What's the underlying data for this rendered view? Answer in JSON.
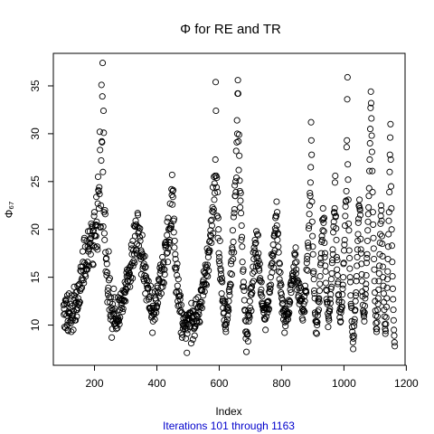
{
  "chart_data": {
    "type": "scatter",
    "title": "Φ  for  RE  and  TR",
    "xlabel": "Index",
    "ylabel": "Φ₆₇",
    "subtitle": "Iterations 101 through 1163",
    "xlim": [
      68,
      1196
    ],
    "ylim": [
      5.8,
      38.4
    ],
    "x_ticks": [
      200,
      400,
      600,
      800,
      1000,
      1200
    ],
    "y_ticks": [
      10,
      15,
      20,
      25,
      30,
      35
    ],
    "x_tick_labels": [
      "200",
      "400",
      "600",
      "800",
      "1000",
      "1200"
    ],
    "y_tick_labels": [
      "10",
      "15",
      "20",
      "25",
      "30",
      "35"
    ],
    "grid": false,
    "legend": "none",
    "marker": "open-circle",
    "x_start": 101,
    "n_points": 1063,
    "y": [
      12.1,
      11.1,
      11.7,
      9.8,
      12.2,
      11.2,
      12.6,
      9.7,
      12.5,
      12.7,
      12.3,
      11.0,
      10.0,
      13.1,
      9.5,
      10.4,
      9.4,
      11.4,
      11.2,
      13.3,
      11.3,
      10.3,
      11.2,
      12.2,
      11.8,
      10.2,
      10.5,
      9.3,
      13.1,
      11.0,
      12.0,
      10.5,
      10.7,
      11.1,
      9.5,
      11.5,
      12.6,
      14.0,
      13.1,
      10.5,
      12.8,
      12.3,
      10.5,
      13.4,
      11.6,
      12.4,
      10.9,
      13.5,
      11.6,
      14.1,
      11.8,
      12.8,
      12.2,
      14.2,
      12.2,
      12.4,
      14.3,
      12.4,
      13.6,
      15.7,
      16.1,
      13.8,
      15.6,
      14.7,
      13.9,
      14.9,
      16.1,
      17.7,
      16.6,
      14.7,
      15.7,
      14.4,
      18.9,
      19.1,
      16.5,
      15.3,
      18.2,
      15.1,
      16.3,
      15.8,
      15.9,
      18.8,
      16.2,
      15.8,
      16.6,
      18.2,
      19.8,
      17.7,
      17.9,
      16.2,
      18.0,
      18.5,
      19.8,
      19.0,
      18.6,
      17.4,
      19.1,
      20.6,
      19.4,
      18.3,
      20.2,
      20.4,
      16.4,
      19.8,
      16.3,
      19.9,
      18.3,
      21.4,
      21.8,
      19.4,
      19.3,
      20.4,
      18.1,
      20.5,
      19.3,
      23.4,
      20.8,
      20.4,
      18.2,
      17.9,
      22.7,
      25.5,
      24.1,
      24.0,
      22.2,
      24.4,
      23.7,
      30.2,
      28.3,
      20.2,
      20.3,
      22.5,
      27.2,
      35.1,
      29.2,
      29.1,
      33.9,
      37.4,
      26.0,
      20.3,
      32.4,
      30.1,
      21.8,
      19.6,
      18.9,
      22.0,
      21.6,
      17.6,
      15.6,
      16.9,
      17.0,
      15.2,
      16.4,
      15.5,
      12.4,
      13.6,
      13.2,
      13.9,
      17.7,
      14.7,
      12.9,
      11.6,
      14.9,
      12.4,
      11.0,
      10.6,
      12.9,
      10.9,
      11.8,
      8.7,
      11.5,
      9.6,
      12.2,
      10.4,
      11.6,
      11.1,
      13.8,
      11.2,
      10.1,
      12.9,
      11.7,
      10.2,
      9.9,
      10.2,
      10.7,
      9.6,
      10.5,
      11.0,
      10.3,
      9.7,
      10.5,
      12.9,
      10.7,
      10.4,
      10.5,
      12.6,
      10.1,
      11.6,
      10.8,
      12.6,
      12.8,
      13.3,
      12.1,
      11.8,
      12.6,
      12.3,
      12.7,
      11.4,
      13.6,
      11.7,
      12.5,
      12.5,
      13.5,
      12.6,
      13.4,
      14.5,
      13.4,
      12.5,
      13.8,
      14.3,
      13.7,
      15.5,
      15.1,
      15.8,
      14.6,
      14.0,
      14.6,
      15.1,
      15.7,
      15.4,
      15.2,
      16.0,
      15.4,
      14.0,
      16.1,
      14.6,
      15.0,
      16.3,
      18.4,
      18.0,
      17.4,
      16.5,
      14.9,
      18.8,
      16.2,
      17.8,
      16.7,
      20.4,
      17.4,
      16.5,
      20.3,
      19.3,
      20.3,
      20.9,
      17.8,
      20.5,
      17.9,
      17.5,
      18.5,
      20.3,
      21.7,
      21.5,
      19.6,
      20.2,
      18.3,
      19.8,
      17.2,
      19.2,
      20.1,
      18.8,
      17.2,
      16.9,
      17.8,
      15.3,
      17.6,
      17.1,
      19.4,
      17.4,
      15.9,
      16.2,
      17.1,
      14.8,
      16.4,
      14.6,
      15.2,
      17.2,
      16.0,
      13.3,
      16.1,
      15.1,
      14.9,
      12.6,
      14.2,
      14.7,
      13.9,
      13.9,
      13.8,
      13.9,
      14.6,
      12.7,
      12.9,
      11.8,
      11.8,
      11.7,
      13.0,
      14.1,
      11.8,
      11.5,
      11.4,
      10.8,
      11.0,
      13.4,
      9.2,
      12.0,
      10.4,
      11.2,
      11.8,
      11.8,
      11.1,
      11.4,
      10.6,
      13.5,
      12.8,
      12.8,
      12.6,
      11.3,
      11.8,
      11.9,
      12.0,
      14.1,
      13.9,
      12.3,
      13.4,
      13.4,
      14.8,
      14.7,
      13.0,
      14.6,
      16.0,
      15.4,
      16.3,
      15.7,
      13.9,
      13.3,
      14.5,
      16.1,
      15.8,
      17.1,
      14.0,
      14.5,
      16.4,
      16.6,
      14.4,
      15.8,
      15.8,
      15.3,
      18.4,
      18.6,
      18.1,
      18.3,
      18.7,
      18.3,
      17.5,
      19.4,
      20.8,
      17.6,
      16.6,
      21.2,
      18.0,
      20.0,
      18.7,
      20.1,
      18.9,
      18.6,
      22.7,
      20.1,
      20.1,
      20.5,
      20.3,
      24.2,
      23.6,
      25.7,
      22.6,
      24.0,
      23.4,
      24.1,
      20.9,
      19.7,
      21.1,
      18.1,
      18.8,
      16.0,
      17.4,
      16.9,
      15.8,
      13.4,
      16.0,
      13.5,
      15.2,
      16.4,
      14.1,
      12.5,
      12.0,
      14.8,
      13.0,
      13.5,
      12.1,
      13.0,
      11.4,
      12.7,
      13.1,
      11.5,
      9.2,
      12.1,
      11.3,
      11.3,
      8.7,
      9.0,
      10.2,
      9.6,
      10.0,
      10.7,
      9.9,
      11.1,
      10.3,
      9.8,
      9.6,
      10.8,
      10.3,
      8.6,
      11.0,
      9.7,
      10.5,
      7.1,
      9.1,
      9.5,
      11.1,
      10.5,
      10.1,
      10.6,
      11.0,
      10.7,
      11.3,
      10.5,
      11.2,
      9.8,
      11.3,
      10.2,
      8.1,
      12.3,
      10.8,
      10.4,
      10.8,
      11.5,
      8.5,
      11.4,
      10.9,
      10.4,
      9.6,
      9.7,
      8.9,
      9.9,
      9.8,
      12.2,
      11.1,
      12.7,
      10.4,
      11.0,
      10.4,
      10.2,
      10.9,
      11.8,
      12.9,
      11.9,
      11.4,
      11.1,
      10.4,
      12.2,
      10.3,
      12.0,
      12.4,
      11.9,
      13.7,
      13.6,
      13.7,
      12.4,
      11.8,
      13.6,
      14.2,
      14.5,
      13.1,
      14.7,
      15.6,
      14.3,
      14.2,
      13.5,
      15.4,
      15.5,
      16.3,
      14.3,
      16.1,
      15.2,
      14.2,
      16.0,
      18.0,
      16.3,
      15.1,
      17.6,
      17.1,
      15.7,
      17.8,
      17.6,
      18.7,
      17.8,
      18.8,
      19.4,
      19.9,
      20.9,
      19.3,
      18.6,
      21.0,
      20.4,
      21.9,
      22.3,
      24.4,
      19.6,
      21.8,
      22.1,
      25.5,
      23.1,
      24.8,
      23.8,
      25.6,
      27.3,
      35.4,
      32.4,
      25.6,
      24.4,
      25.4,
      21.4,
      21.4,
      23.9,
      19.1,
      21.2,
      20.0,
      17.5,
      16.7,
      17.1,
      16.4,
      18.8,
      14.8,
      15.9,
      15.7,
      15.3,
      14.6,
      13.3,
      14.9,
      14.5,
      12.5,
      12.7,
      11.8,
      12.5,
      11.2,
      11.3,
      10.5,
      12.3,
      10.0,
      12.5,
      10.0,
      9.6,
      9.3,
      10.1,
      10.3,
      11.7,
      11.9,
      10.6,
      11.0,
      11.6,
      11.8,
      11.5,
      12.5,
      13.7,
      13.5,
      13.1,
      14.0,
      14.3,
      15.4,
      14.2,
      16.4,
      16.7,
      17.6,
      15.3,
      18.1,
      17.9,
      19.9,
      16.9,
      18.7,
      21.3,
      17.6,
      21.7,
      22.1,
      24.6,
      23.5,
      23.5,
      25.0,
      23.9,
      28.2,
      25.4,
      29.1,
      31.4,
      30.0,
      34.2,
      35.6,
      34.2,
      29.2,
      26.2,
      29.9,
      27.7,
      25.1,
      24.0,
      22.3,
      23.0,
      23.8,
      21.7,
      18.9,
      20.4,
      19.2,
      18.2,
      16.6,
      14.0,
      15.6,
      15.8,
      14.5,
      14.0,
      13.6,
      12.6,
      11.6,
      11.5,
      10.5,
      9.3,
      8.6,
      10.4,
      7.2,
      9.3,
      9.0,
      9.1,
      9.0,
      11.0,
      8.3,
      11.5,
      10.4,
      11.1,
      11.0,
      10.8,
      12.5,
      11.8,
      13.8,
      13.2,
      13.9,
      11.5,
      13.2,
      14.0,
      13.4,
      14.4,
      15.4,
      16.1,
      17.6,
      14.6,
      16.9,
      18.1,
      15.6,
      17.8,
      18.9,
      18.5,
      17.5,
      18.6,
      16.1,
      19.8,
      17.0,
      16.5,
      19.5,
      17.1,
      16.2,
      19.4,
      17.5,
      16.7,
      15.9,
      15.7,
      14.7,
      16.4,
      14.9,
      14.6,
      13.4,
      13.2,
      13.7,
      14.5,
      12.3,
      13.0,
      12.0,
      12.2,
      12.0,
      11.6,
      11.8,
      11.3,
      11.6,
      10.7,
      10.6,
      11.8,
      10.6,
      9.5,
      11.7,
      11.8,
      10.9,
      12.1,
      12.4,
      11.7,
      11.3,
      12.4,
      12.4,
      12.5,
      11.6,
      11.7,
      13.5,
      14.1,
      13.4,
      13.8,
      13.8,
      15.0,
      14.2,
      16.2,
      17.4,
      16.4,
      15.5,
      16.5,
      17.3,
      17.2,
      18.4,
      17.5,
      16.0,
      19.3,
      19.4,
      19.6,
      17.8,
      20.1,
      21.2,
      21.4,
      19.9,
      21.4,
      22.9,
      20.4,
      21.8,
      18.9,
      19.5,
      19.6,
      18.2,
      17.6,
      15.6,
      16.5,
      14.8,
      16.4,
      14.1,
      15.5,
      14.4,
      13.4,
      14.2,
      13.2,
      12.8,
      11.3,
      12.2,
      12.6,
      12.3,
      11.5,
      10.6,
      11.4,
      11.6,
      11.0,
      9.2,
      10.3,
      11.6,
      9.9,
      11.7,
      11.0,
      10.4,
      10.6,
      11.2,
      11.4,
      11.1,
      11.2,
      10.6,
      11.2,
      11.1,
      12.6,
      11.3,
      12.2,
      12.5,
      12.4,
      13.7,
      14.2,
      14.4,
      13.4,
      14.6,
      14.2,
      14.2,
      15.1,
      15.4,
      14.8,
      15.2,
      14.6,
      16.1,
      15.6,
      14.7,
      17.5,
      17.3,
      16.5,
      17.4,
      18.1,
      15.4,
      15.8,
      16.6,
      14.5,
      13.7,
      14.7,
      14.3,
      14.6,
      12.9,
      13.1,
      13.9,
      14.4,
      12.2,
      12.6,
      13.6,
      12.5,
      12.5,
      13.9,
      12.6,
      12.8,
      11.4,
      12.7,
      10.7,
      11.7,
      10.5,
      11.5,
      11.6,
      12.2,
      11.4,
      13.0,
      11.4,
      12.5,
      14.1,
      13.6,
      13.5,
      13.6,
      13.4,
      15.8,
      16.5,
      16.9,
      17.2,
      15.7,
      18.6,
      18.3,
      18.1,
      20.1,
      20.4,
      21.6,
      22.5,
      23.8,
      23.5,
      24.9,
      26.5,
      31.2,
      29.3,
      27.8,
      22.9,
      20.8,
      19.3,
      18.2,
      17.4,
      15.4,
      15.6,
      14.8,
      13.6,
      13.3,
      12.8,
      11.3,
      11.1,
      10.4,
      9.2,
      10.4,
      10.3,
      9.1,
      10.0,
      10.3,
      11.0,
      11.4,
      12.5,
      12.7,
      11.6,
      12.8,
      12.4,
      13.6,
      14.3,
      15.1,
      16.3,
      17.0,
      16.5,
      17.5,
      18.7,
      19.3,
      18.9,
      21.0,
      19.9,
      22.2,
      21.1,
      20.7,
      19.8,
      21.2,
      18.6,
      17.1,
      17.5,
      16.2,
      15.6,
      14.4,
      13.7,
      12.7,
      13.6,
      12.4,
      12.2,
      12.4,
      11.2,
      9.8,
      10.9,
      10.7,
      10.5,
      11.5,
      11.4,
      11.7,
      12.7,
      12.3,
      13.2,
      13.8,
      14.8,
      14.0,
      15.4,
      16.5,
      16.8,
      17.9,
      17.4,
      19.7,
      20.3,
      20.8,
      21.8,
      21.7,
      22.2,
      24.9,
      25.6,
      21.3,
      21.4,
      20.1,
      18.9,
      17.1,
      15.8,
      16.8,
      15.2,
      14.3,
      14.5,
      13.1,
      13.2,
      12.4,
      12.6,
      11.4,
      10.8,
      11.7,
      10.3,
      10.4,
      11.3,
      11.6,
      11.9,
      12.4,
      11.9,
      13.2,
      13.8,
      14.2,
      15.0,
      16.4,
      16.5,
      17.8,
      18.4,
      18.9,
      20.4,
      21.4,
      22.4,
      22.9,
      23.0,
      24.0,
      28.6,
      29.3,
      33.6,
      35.9,
      26.8,
      25.2,
      23.1,
      20.6,
      19.9,
      17.8,
      17.0,
      15.9,
      15.0,
      14.5,
      13.1,
      12.2,
      12.0,
      11.8,
      10.4,
      9.8,
      9.3,
      8.8,
      8.2,
      7.5,
      8.6,
      8.9,
      9.9,
      10.3,
      10.6,
      11.5,
      11.6,
      12.5,
      13.1,
      13.4,
      14.6,
      15.1,
      16.2,
      17.1,
      17.9,
      18.8,
      19.5,
      20.7,
      21.1,
      22.5,
      22.4,
      23.1,
      22.2,
      22.0,
      21.5,
      19.0,
      17.9,
      17.5,
      16.4,
      15.3,
      14.6,
      13.5,
      13.0,
      12.1,
      11.5,
      11.3,
      11.1,
      10.9,
      10.4,
      11.3,
      12.0,
      12.8,
      13.2,
      13.8,
      14.3,
      15.2,
      16.5,
      17.0,
      17.4,
      18.8,
      19.9,
      20.8,
      21.6,
      22.3,
      23.5,
      24.3,
      26.1,
      27.3,
      29.0,
      30.5,
      32.7,
      34.4,
      33.2,
      31.6,
      29.8,
      28.1,
      26.1,
      23.9,
      21.8,
      20.5,
      19.1,
      18.0,
      16.9,
      15.8,
      14.6,
      13.4,
      12.5,
      11.5,
      11.0,
      10.2,
      9.6,
      9.3,
      9.6,
      10.3,
      10.9,
      11.6,
      12.2,
      12.8,
      13.7,
      14.6,
      15.4,
      16.2,
      17.4,
      18.6,
      19.5,
      20.6,
      21.4,
      22.5,
      22.0,
      20.9,
      19.3,
      18.5,
      17.2,
      16.1,
      15.0,
      14.1,
      13.3,
      12.4,
      11.6,
      10.9,
      10.1,
      9.6,
      9.1,
      9.4,
      10.1,
      10.8,
      11.9,
      12.8,
      13.9,
      14.8,
      15.6,
      16.9,
      18.2,
      19.5,
      20.9,
      21.8,
      23.9,
      26.0,
      27.8,
      29.6,
      31.0,
      27.3,
      24.5,
      22.2,
      20.0,
      18.3,
      16.6,
      15.1,
      13.8,
      12.7,
      11.6,
      10.5,
      9.5,
      8.9,
      8.2,
      7.8
    ]
  }
}
